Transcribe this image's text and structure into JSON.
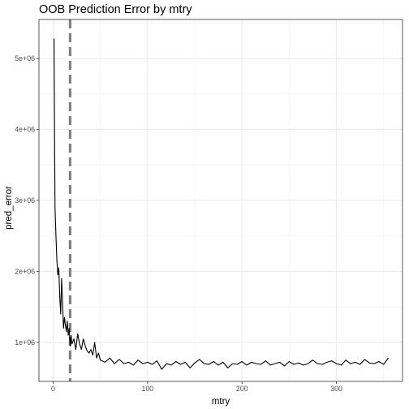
{
  "chart_data": {
    "type": "line",
    "title": "OOB Prediction Error by mtry",
    "xlabel": "mtry",
    "ylabel": "pred_error",
    "xlim": [
      -15,
      370
    ],
    "ylim": [
      450000,
      5550000
    ],
    "x_ticks": [
      0,
      100,
      200,
      300
    ],
    "x_tick_labels": [
      "0",
      "100",
      "200",
      "300"
    ],
    "y_ticks": [
      1000000,
      2000000,
      3000000,
      4000000,
      5000000
    ],
    "y_tick_labels": [
      "1e+06",
      "2e+06",
      "3e+06",
      "4e+06",
      "5e+06"
    ],
    "grid": true,
    "legend": "none",
    "reference_line": {
      "x": 18,
      "style": "dashed",
      "color": "#808080"
    },
    "series": [
      {
        "color": "#000000",
        "x": [
          1,
          2,
          3,
          4,
          5,
          6,
          7,
          8,
          9,
          10,
          11,
          12,
          13,
          14,
          15,
          16,
          17,
          18,
          19,
          20,
          22,
          24,
          26,
          28,
          30,
          32,
          34,
          36,
          38,
          40,
          42,
          44,
          46,
          48,
          50,
          55,
          60,
          65,
          70,
          75,
          80,
          85,
          90,
          95,
          100,
          105,
          110,
          115,
          120,
          125,
          130,
          135,
          140,
          145,
          150,
          155,
          160,
          165,
          170,
          175,
          180,
          185,
          190,
          195,
          200,
          205,
          210,
          215,
          220,
          225,
          230,
          235,
          240,
          245,
          250,
          255,
          260,
          265,
          270,
          275,
          280,
          285,
          290,
          295,
          300,
          305,
          310,
          315,
          320,
          325,
          330,
          335,
          340,
          345,
          350,
          355
        ],
        "y": [
          5280000,
          2900000,
          2500000,
          2150000,
          1950000,
          2050000,
          1650000,
          1400000,
          1900000,
          1550000,
          1200000,
          1350000,
          1250000,
          1150000,
          1300000,
          1100000,
          1200000,
          950000,
          1100000,
          980000,
          1050000,
          900000,
          1120000,
          980000,
          900000,
          1050000,
          950000,
          880000,
          850000,
          900000,
          820000,
          1000000,
          780000,
          850000,
          750000,
          720000,
          780000,
          700000,
          760000,
          700000,
          720000,
          680000,
          750000,
          700000,
          720000,
          690000,
          740000,
          620000,
          700000,
          680000,
          730000,
          690000,
          720000,
          640000,
          710000,
          760000,
          700000,
          690000,
          730000,
          680000,
          720000,
          640000,
          700000,
          690000,
          730000,
          680000,
          720000,
          700000,
          690000,
          740000,
          680000,
          700000,
          720000,
          670000,
          730000,
          690000,
          710000,
          680000,
          700000,
          750000,
          700000,
          690000,
          720000,
          740000,
          700000,
          680000,
          750000,
          700000,
          720000,
          690000,
          760000,
          710000,
          700000,
          730000,
          690000,
          780000
        ]
      }
    ]
  }
}
